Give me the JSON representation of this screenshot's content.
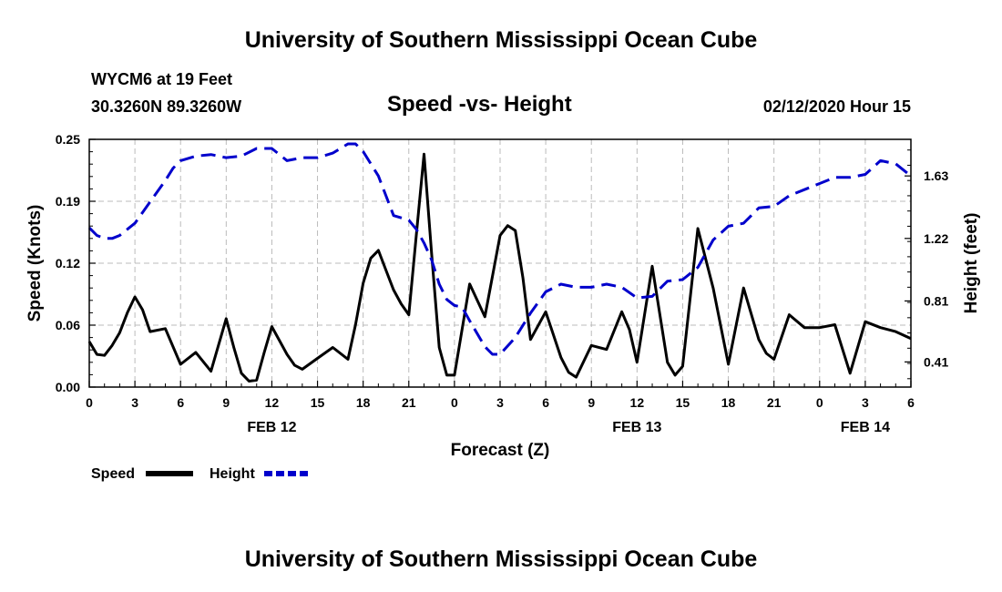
{
  "header": {
    "title": "University of Southern Mississippi Ocean Cube",
    "station": "WYCM6 at 19 Feet",
    "coords": "30.3260N 89.3260W",
    "subtitle": "Speed -vs- Height",
    "datetime": "02/12/2020 Hour 15"
  },
  "footer": {
    "title": "University of Southern Mississippi Ocean Cube"
  },
  "chart_data": {
    "type": "line",
    "xlabel": "Forecast (Z)",
    "ylabel_left": "Speed (Knots)",
    "ylabel_right": "Height (feet)",
    "x_range": [
      0,
      54
    ],
    "ylim_left": [
      0.0,
      0.25
    ],
    "ylim_right": [
      0.245,
      1.87
    ],
    "left_ticks": [
      {
        "v": 0.0,
        "label": "0.00"
      },
      {
        "v": 0.0625,
        "label": "0.06"
      },
      {
        "v": 0.125,
        "label": "0.12"
      },
      {
        "v": 0.1875,
        "label": "0.19"
      },
      {
        "v": 0.25,
        "label": "0.25"
      }
    ],
    "right_ticks": [
      {
        "v": 0.41,
        "label": "0.41"
      },
      {
        "v": 0.81,
        "label": "0.81"
      },
      {
        "v": 1.22,
        "label": "1.22"
      },
      {
        "v": 1.63,
        "label": "1.63"
      }
    ],
    "x_ticks": [
      {
        "x": 0,
        "label": "0"
      },
      {
        "x": 3,
        "label": "3"
      },
      {
        "x": 6,
        "label": "6"
      },
      {
        "x": 9,
        "label": "9"
      },
      {
        "x": 12,
        "label": "12"
      },
      {
        "x": 15,
        "label": "15"
      },
      {
        "x": 18,
        "label": "18"
      },
      {
        "x": 21,
        "label": "21"
      },
      {
        "x": 24,
        "label": "0"
      },
      {
        "x": 27,
        "label": "3"
      },
      {
        "x": 30,
        "label": "6"
      },
      {
        "x": 33,
        "label": "9"
      },
      {
        "x": 36,
        "label": "12"
      },
      {
        "x": 39,
        "label": "15"
      },
      {
        "x": 42,
        "label": "18"
      },
      {
        "x": 45,
        "label": "21"
      },
      {
        "x": 48,
        "label": "0"
      },
      {
        "x": 51,
        "label": "3"
      },
      {
        "x": 54,
        "label": "6"
      }
    ],
    "date_labels": [
      {
        "x": 12,
        "label": "FEB 12"
      },
      {
        "x": 36,
        "label": "FEB 13"
      },
      {
        "x": 51,
        "label": "FEB 14"
      }
    ],
    "grid": true,
    "series": [
      {
        "name": "Speed",
        "axis": "left",
        "color": "#000000",
        "dash": "solid",
        "points": [
          [
            0,
            0.046
          ],
          [
            0.5,
            0.033
          ],
          [
            1,
            0.032
          ],
          [
            1.5,
            0.042
          ],
          [
            2,
            0.055
          ],
          [
            2.5,
            0.075
          ],
          [
            3,
            0.091
          ],
          [
            3.5,
            0.078
          ],
          [
            4,
            0.056
          ],
          [
            5,
            0.059
          ],
          [
            6,
            0.023
          ],
          [
            7,
            0.035
          ],
          [
            8,
            0.016
          ],
          [
            9,
            0.069
          ],
          [
            9.5,
            0.04
          ],
          [
            10,
            0.014
          ],
          [
            10.5,
            0.006
          ],
          [
            11,
            0.007
          ],
          [
            11.5,
            0.035
          ],
          [
            12,
            0.061
          ],
          [
            13,
            0.033
          ],
          [
            13.5,
            0.022
          ],
          [
            14,
            0.018
          ],
          [
            15,
            0.029
          ],
          [
            16,
            0.04
          ],
          [
            17,
            0.028
          ],
          [
            17.5,
            0.063
          ],
          [
            18,
            0.105
          ],
          [
            18.5,
            0.13
          ],
          [
            19,
            0.138
          ],
          [
            19.5,
            0.118
          ],
          [
            20,
            0.098
          ],
          [
            20.5,
            0.084
          ],
          [
            21,
            0.073
          ],
          [
            21.5,
            0.154
          ],
          [
            22,
            0.235
          ],
          [
            22.5,
            0.135
          ],
          [
            23,
            0.04
          ],
          [
            23.5,
            0.012
          ],
          [
            24,
            0.012
          ],
          [
            25,
            0.104
          ],
          [
            26,
            0.071
          ],
          [
            27,
            0.153
          ],
          [
            27.5,
            0.163
          ],
          [
            28,
            0.158
          ],
          [
            28.5,
            0.11
          ],
          [
            29,
            0.048
          ],
          [
            30,
            0.076
          ],
          [
            31,
            0.03
          ],
          [
            31.5,
            0.015
          ],
          [
            32,
            0.01
          ],
          [
            33,
            0.042
          ],
          [
            34,
            0.038
          ],
          [
            35,
            0.076
          ],
          [
            35.5,
            0.058
          ],
          [
            36,
            0.025
          ],
          [
            37,
            0.122
          ],
          [
            38,
            0.025
          ],
          [
            38.5,
            0.012
          ],
          [
            39,
            0.021
          ],
          [
            40,
            0.16
          ],
          [
            41,
            0.1
          ],
          [
            42,
            0.023
          ],
          [
            43,
            0.1
          ],
          [
            44,
            0.048
          ],
          [
            44.5,
            0.034
          ],
          [
            45,
            0.028
          ],
          [
            46,
            0.073
          ],
          [
            47,
            0.06
          ],
          [
            48,
            0.06
          ],
          [
            49,
            0.063
          ],
          [
            50,
            0.014
          ],
          [
            51,
            0.066
          ],
          [
            52,
            0.06
          ],
          [
            53,
            0.056
          ],
          [
            54,
            0.049
          ]
        ]
      },
      {
        "name": "Height",
        "axis": "right",
        "color": "#0000cc",
        "dash": "dashed",
        "points": [
          [
            0,
            1.29
          ],
          [
            0.5,
            1.24
          ],
          [
            1,
            1.22
          ],
          [
            1.5,
            1.22
          ],
          [
            2,
            1.24
          ],
          [
            3,
            1.32
          ],
          [
            4,
            1.46
          ],
          [
            5,
            1.6
          ],
          [
            5.5,
            1.68
          ],
          [
            6,
            1.73
          ],
          [
            7,
            1.76
          ],
          [
            8,
            1.77
          ],
          [
            9,
            1.75
          ],
          [
            10,
            1.76
          ],
          [
            11,
            1.81
          ],
          [
            12,
            1.81
          ],
          [
            13,
            1.73
          ],
          [
            14,
            1.75
          ],
          [
            15,
            1.75
          ],
          [
            16,
            1.78
          ],
          [
            17,
            1.84
          ],
          [
            17.5,
            1.84
          ],
          [
            18,
            1.79
          ],
          [
            19,
            1.63
          ],
          [
            19.5,
            1.5
          ],
          [
            20,
            1.37
          ],
          [
            21,
            1.34
          ],
          [
            21.5,
            1.28
          ],
          [
            22,
            1.19
          ],
          [
            22.5,
            1.08
          ],
          [
            23,
            0.92
          ],
          [
            23.5,
            0.82
          ],
          [
            24,
            0.78
          ],
          [
            24.5,
            0.77
          ],
          [
            25,
            0.68
          ],
          [
            26,
            0.51
          ],
          [
            26.5,
            0.46
          ],
          [
            27,
            0.46
          ],
          [
            28,
            0.57
          ],
          [
            29,
            0.73
          ],
          [
            30,
            0.87
          ],
          [
            31,
            0.92
          ],
          [
            32,
            0.9
          ],
          [
            33,
            0.9
          ],
          [
            34,
            0.92
          ],
          [
            35,
            0.9
          ],
          [
            36,
            0.83
          ],
          [
            37,
            0.84
          ],
          [
            38,
            0.94
          ],
          [
            39,
            0.95
          ],
          [
            40,
            1.03
          ],
          [
            41,
            1.21
          ],
          [
            42,
            1.3
          ],
          [
            43,
            1.32
          ],
          [
            44,
            1.42
          ],
          [
            45,
            1.43
          ],
          [
            46,
            1.5
          ],
          [
            47,
            1.54
          ],
          [
            48,
            1.58
          ],
          [
            49,
            1.62
          ],
          [
            50,
            1.62
          ],
          [
            51,
            1.64
          ],
          [
            52,
            1.73
          ],
          [
            53,
            1.71
          ],
          [
            54,
            1.63
          ]
        ]
      }
    ]
  }
}
